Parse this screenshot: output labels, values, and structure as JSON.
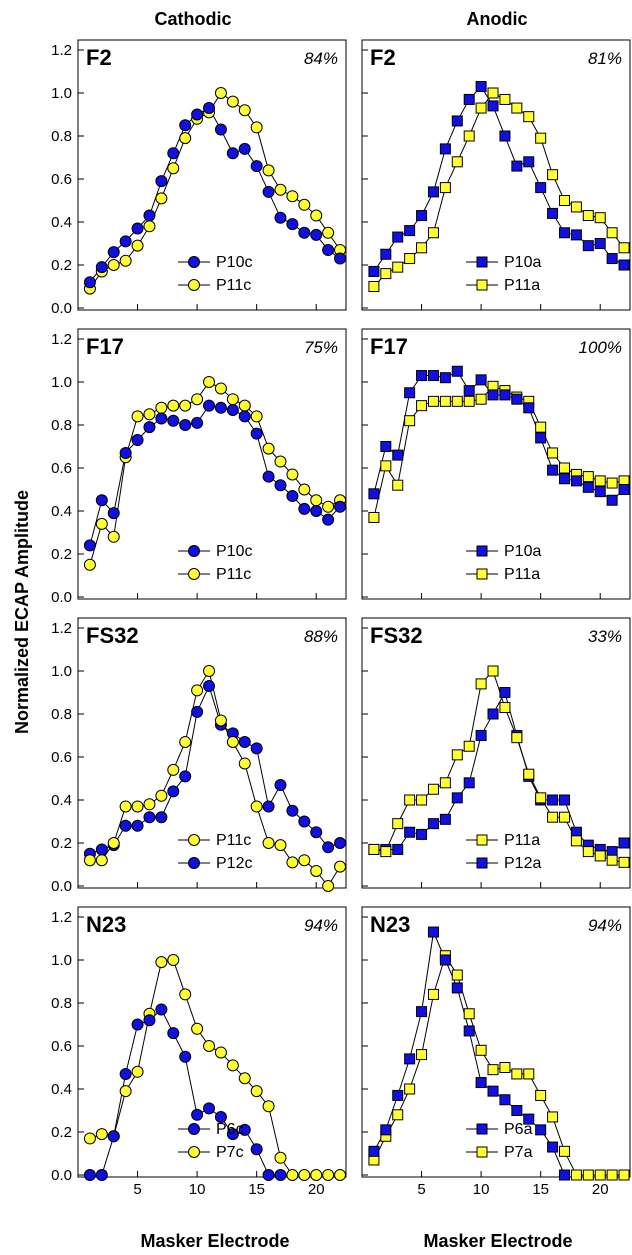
{
  "figure": {
    "columns": [
      "Cathodic",
      "Anodic"
    ],
    "xlabel": "Masker Electrode",
    "ylabel": "Normalized ECAP Amplitude",
    "x_ticks": [
      5,
      10,
      15,
      20
    ],
    "y_ticks": [
      "0.0",
      "0.2",
      "0.4",
      "0.6",
      "0.8",
      "1.0",
      "1.2"
    ],
    "colors": {
      "blue": "#1010e0",
      "yellow": "#ffff33",
      "edge": "#000000"
    }
  },
  "chart_data": [
    {
      "type": "line",
      "subject": "F2",
      "percent": "84%",
      "xlim": [
        0,
        22.5
      ],
      "ylim": [
        0,
        1.2
      ],
      "series": [
        {
          "name": "P10c",
          "marker": "circle",
          "color": "blue",
          "x": [
            1,
            2,
            3,
            4,
            5,
            6,
            7,
            8,
            9,
            10,
            11,
            12,
            13,
            14,
            15,
            16,
            17,
            18,
            19,
            20,
            21,
            22
          ],
          "y": [
            0.12,
            0.19,
            0.26,
            0.31,
            0.37,
            0.43,
            0.59,
            0.72,
            0.85,
            0.9,
            0.93,
            0.83,
            0.72,
            0.74,
            0.66,
            0.54,
            0.42,
            0.39,
            0.35,
            0.34,
            0.27,
            0.23
          ]
        },
        {
          "name": "P11c",
          "marker": "circle",
          "color": "yellow",
          "x": [
            1,
            2,
            3,
            4,
            5,
            6,
            7,
            8,
            9,
            10,
            11,
            12,
            13,
            14,
            15,
            16,
            17,
            18,
            19,
            20,
            21,
            22
          ],
          "y": [
            0.09,
            0.17,
            0.2,
            0.22,
            0.29,
            0.38,
            0.51,
            0.65,
            0.79,
            0.88,
            0.91,
            1.0,
            0.96,
            0.92,
            0.84,
            0.64,
            0.55,
            0.52,
            0.48,
            0.43,
            0.35,
            0.27
          ]
        }
      ]
    },
    {
      "type": "line",
      "subject": "F2",
      "percent": "81%",
      "xlim": [
        0,
        22.5
      ],
      "ylim": [
        0,
        1.2
      ],
      "series": [
        {
          "name": "P10a",
          "marker": "square",
          "color": "blue",
          "x": [
            1,
            2,
            3,
            4,
            5,
            6,
            7,
            8,
            9,
            10,
            11,
            12,
            13,
            14,
            15,
            16,
            17,
            18,
            19,
            20,
            21,
            22
          ],
          "y": [
            0.17,
            0.25,
            0.33,
            0.36,
            0.43,
            0.54,
            0.74,
            0.87,
            0.97,
            1.03,
            0.94,
            0.8,
            0.66,
            0.68,
            0.56,
            0.44,
            0.35,
            0.34,
            0.29,
            0.3,
            0.23,
            0.2
          ]
        },
        {
          "name": "P11a",
          "marker": "square",
          "color": "yellow",
          "x": [
            1,
            2,
            3,
            4,
            5,
            6,
            7,
            8,
            9,
            10,
            11,
            12,
            13,
            14,
            15,
            16,
            17,
            18,
            19,
            20,
            21,
            22
          ],
          "y": [
            0.1,
            0.16,
            0.19,
            0.23,
            0.28,
            0.35,
            0.56,
            0.68,
            0.8,
            0.93,
            1.0,
            0.97,
            0.93,
            0.89,
            0.79,
            0.62,
            0.5,
            0.47,
            0.43,
            0.42,
            0.35,
            0.28
          ]
        }
      ]
    },
    {
      "type": "line",
      "subject": "F17",
      "percent": "75%",
      "xlim": [
        0,
        22.5
      ],
      "ylim": [
        0,
        1.2
      ],
      "series": [
        {
          "name": "P10c",
          "marker": "circle",
          "color": "blue",
          "x": [
            1,
            2,
            3,
            4,
            5,
            6,
            7,
            8,
            9,
            10,
            11,
            12,
            13,
            14,
            15,
            16,
            17,
            18,
            19,
            20,
            21,
            22
          ],
          "y": [
            0.24,
            0.45,
            0.39,
            0.67,
            0.73,
            0.79,
            0.83,
            0.82,
            0.8,
            0.81,
            0.89,
            0.88,
            0.87,
            0.84,
            0.76,
            0.56,
            0.52,
            0.47,
            0.41,
            0.4,
            0.36,
            0.42
          ]
        },
        {
          "name": "P11c",
          "marker": "circle",
          "color": "yellow",
          "x": [
            1,
            2,
            3,
            4,
            5,
            6,
            7,
            8,
            9,
            10,
            11,
            12,
            13,
            14,
            15,
            16,
            17,
            18,
            19,
            20,
            21,
            22
          ],
          "y": [
            0.15,
            0.34,
            0.28,
            0.65,
            0.84,
            0.85,
            0.88,
            0.89,
            0.89,
            0.92,
            1.0,
            0.97,
            0.92,
            0.89,
            0.84,
            0.69,
            0.63,
            0.57,
            0.5,
            0.45,
            0.42,
            0.45
          ]
        }
      ]
    },
    {
      "type": "line",
      "subject": "F17",
      "percent": "100%",
      "xlim": [
        0,
        22.5
      ],
      "ylim": [
        0,
        1.2
      ],
      "series": [
        {
          "name": "P10a",
          "marker": "square",
          "color": "blue",
          "x": [
            1,
            2,
            3,
            4,
            5,
            6,
            7,
            8,
            9,
            10,
            11,
            12,
            13,
            14,
            15,
            16,
            17,
            18,
            19,
            20,
            21,
            22
          ],
          "y": [
            0.48,
            0.7,
            0.66,
            0.95,
            1.03,
            1.03,
            1.02,
            1.05,
            0.96,
            1.01,
            0.94,
            0.94,
            0.92,
            0.88,
            0.74,
            0.59,
            0.55,
            0.54,
            0.51,
            0.49,
            0.45,
            0.5
          ]
        },
        {
          "name": "P11a",
          "marker": "square",
          "color": "yellow",
          "x": [
            1,
            2,
            3,
            4,
            5,
            6,
            7,
            8,
            9,
            10,
            11,
            12,
            13,
            14,
            15,
            16,
            17,
            18,
            19,
            20,
            21,
            22
          ],
          "y": [
            0.37,
            0.61,
            0.52,
            0.82,
            0.89,
            0.91,
            0.91,
            0.91,
            0.91,
            0.92,
            0.98,
            0.96,
            0.93,
            0.91,
            0.79,
            0.67,
            0.6,
            0.57,
            0.56,
            0.54,
            0.53,
            0.54
          ]
        }
      ]
    },
    {
      "type": "line",
      "subject": "FS32",
      "percent": "88%",
      "xlim": [
        0,
        22.5
      ],
      "ylim": [
        0,
        1.2
      ],
      "series": [
        {
          "name": "P11c",
          "marker": "circle",
          "color": "yellow",
          "x": [
            1,
            2,
            3,
            4,
            5,
            6,
            7,
            8,
            9,
            10,
            11,
            12,
            13,
            14,
            15,
            16,
            17,
            18,
            19,
            20,
            21,
            22
          ],
          "y": [
            0.12,
            0.12,
            0.2,
            0.37,
            0.37,
            0.38,
            0.42,
            0.54,
            0.67,
            0.91,
            1.0,
            0.77,
            0.67,
            0.57,
            0.37,
            0.2,
            0.19,
            0.11,
            0.12,
            0.07,
            0.0,
            0.09
          ]
        },
        {
          "name": "P12c",
          "marker": "circle",
          "color": "blue",
          "x": [
            1,
            2,
            3,
            4,
            5,
            6,
            7,
            8,
            9,
            10,
            11,
            12,
            13,
            14,
            15,
            16,
            17,
            18,
            19,
            20,
            21,
            22
          ],
          "y": [
            0.15,
            0.17,
            0.19,
            0.28,
            0.28,
            0.32,
            0.32,
            0.44,
            0.51,
            0.81,
            0.93,
            0.75,
            0.71,
            0.67,
            0.64,
            0.37,
            0.47,
            0.35,
            0.3,
            0.25,
            0.18,
            0.2
          ]
        }
      ]
    },
    {
      "type": "line",
      "subject": "FS32",
      "percent": "33%",
      "xlim": [
        0,
        22.5
      ],
      "ylim": [
        0,
        1.2
      ],
      "series": [
        {
          "name": "P11a",
          "marker": "square",
          "color": "yellow",
          "x": [
            1,
            2,
            3,
            4,
            5,
            6,
            7,
            8,
            9,
            10,
            11,
            12,
            13,
            14,
            15,
            16,
            17,
            18,
            19,
            20,
            21,
            22
          ],
          "y": [
            0.17,
            0.16,
            0.29,
            0.4,
            0.4,
            0.45,
            0.48,
            0.61,
            0.65,
            0.94,
            1.0,
            0.83,
            0.69,
            0.52,
            0.41,
            0.32,
            0.32,
            0.21,
            0.16,
            0.14,
            0.12,
            0.11
          ]
        },
        {
          "name": "P12a",
          "marker": "square",
          "color": "blue",
          "x": [
            1,
            2,
            3,
            4,
            5,
            6,
            7,
            8,
            9,
            10,
            11,
            12,
            13,
            14,
            15,
            16,
            17,
            18,
            19,
            20,
            21,
            22
          ],
          "y": [
            0.17,
            0.17,
            0.17,
            0.25,
            0.24,
            0.29,
            0.31,
            0.41,
            0.48,
            0.7,
            0.8,
            0.9,
            0.7,
            0.51,
            0.4,
            0.4,
            0.4,
            0.25,
            0.19,
            0.17,
            0.16,
            0.2
          ]
        }
      ]
    },
    {
      "type": "line",
      "subject": "N23",
      "percent": "94%",
      "xlim": [
        0,
        22.5
      ],
      "ylim": [
        0,
        1.2
      ],
      "series": [
        {
          "name": "P6c",
          "marker": "circle",
          "color": "blue",
          "x": [
            1,
            2,
            3,
            4,
            5,
            6,
            7,
            8,
            9,
            10,
            11,
            12,
            13,
            14,
            15,
            16,
            17
          ],
          "y": [
            0.0,
            0.0,
            0.18,
            0.47,
            0.7,
            0.72,
            0.77,
            0.66,
            0.55,
            0.28,
            0.31,
            0.27,
            0.19,
            0.21,
            0.12,
            0.0,
            0.0
          ]
        },
        {
          "name": "P7c",
          "marker": "circle",
          "color": "yellow",
          "x": [
            1,
            2,
            3,
            4,
            5,
            6,
            7,
            8,
            9,
            10,
            11,
            12,
            13,
            14,
            15,
            16,
            17,
            18,
            19,
            20,
            21,
            22
          ],
          "y": [
            0.17,
            0.19,
            0.18,
            0.39,
            0.48,
            0.75,
            0.99,
            1.0,
            0.84,
            0.68,
            0.6,
            0.57,
            0.51,
            0.45,
            0.39,
            0.32,
            0.08,
            0.0,
            0.0,
            0.0,
            0.0,
            0.0
          ]
        }
      ]
    },
    {
      "type": "line",
      "subject": "N23",
      "percent": "94%",
      "xlim": [
        0,
        22.5
      ],
      "ylim": [
        0,
        1.2
      ],
      "series": [
        {
          "name": "P6a",
          "marker": "square",
          "color": "blue",
          "x": [
            1,
            2,
            3,
            4,
            5,
            6,
            7,
            8,
            9,
            10,
            11,
            12,
            13,
            14,
            15,
            16,
            17
          ],
          "y": [
            0.11,
            0.21,
            0.37,
            0.54,
            0.76,
            1.13,
            1.0,
            0.87,
            0.67,
            0.43,
            0.39,
            0.35,
            0.3,
            0.26,
            0.21,
            0.13,
            0.0
          ]
        },
        {
          "name": "P7a",
          "marker": "square",
          "color": "yellow",
          "x": [
            1,
            2,
            3,
            4,
            5,
            6,
            7,
            8,
            9,
            10,
            11,
            12,
            13,
            14,
            15,
            16,
            17,
            18,
            19,
            20,
            21,
            22
          ],
          "y": [
            0.07,
            0.18,
            0.28,
            0.4,
            0.56,
            0.84,
            1.02,
            0.93,
            0.75,
            0.58,
            0.49,
            0.5,
            0.47,
            0.47,
            0.37,
            0.27,
            0.11,
            0.0,
            0.0,
            0.0,
            0.0,
            0.0
          ]
        }
      ]
    }
  ]
}
